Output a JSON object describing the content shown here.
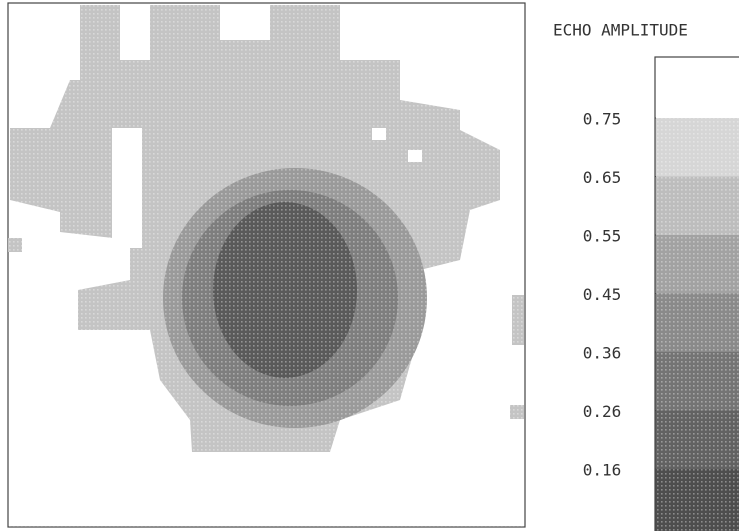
{
  "chart_data": {
    "type": "heatmap",
    "colorbar": {
      "title": "ECHO AMPLITUDE",
      "ticks": [
        0.75,
        0.65,
        0.55,
        0.45,
        0.36,
        0.26,
        0.16
      ],
      "colors": [
        "#ffffff",
        "#d6d6d6",
        "#bdbdbd",
        "#a2a2a2",
        "#8a8a8a",
        "#747474",
        "#626262",
        "#4e4e4e"
      ]
    }
  }
}
